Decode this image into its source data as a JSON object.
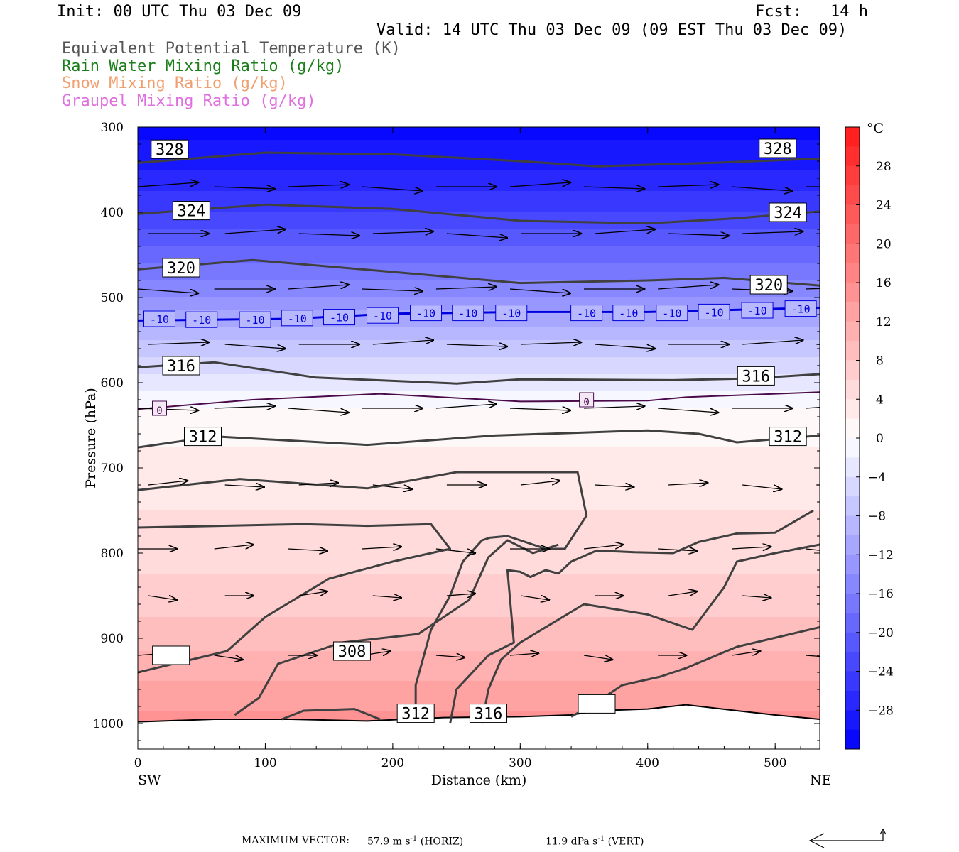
{
  "header": {
    "init": "Init: 00 UTC Thu 03 Dec 09",
    "fcst": "Fcst:   14 h",
    "valid": "Valid: 14 UTC Thu 03 Dec 09 (09 EST Thu 03 Dec 09)",
    "fields": [
      {
        "label": "Equivalent Potential Temperature (K)",
        "color": "#555555"
      },
      {
        "label": "Rain Water Mixing Ratio (g/kg)",
        "color": "#1a7f1a"
      },
      {
        "label": "Snow Mixing Ratio (g/kg)",
        "color": "#f0a070"
      },
      {
        "label": "Graupel Mixing Ratio (g/kg)",
        "color": "#e070e0"
      }
    ]
  },
  "footer": {
    "max_vector_label": "MAXIMUM VECTOR:",
    "horiz_value": "57.9 m s",
    "horiz_unit": "(HORIZ)",
    "vert_value": "11.9 dPa s",
    "vert_unit": "(VERT)",
    "exponent": "-1"
  },
  "chart_data": {
    "type": "heatmap",
    "title": "",
    "xlabel": "Distance (km)",
    "ylabel": "Pressure (hPa)",
    "xlim": [
      0,
      535
    ],
    "ylim": [
      1030,
      300
    ],
    "x_ticks": [
      0,
      100,
      200,
      300,
      400,
      500
    ],
    "y_ticks": [
      300,
      400,
      500,
      600,
      700,
      800,
      900,
      1000
    ],
    "x_end_labels": {
      "left": "SW",
      "right": "NE"
    },
    "colorbar": {
      "unit": "°C",
      "levels": [
        -32,
        -30,
        -28,
        -26,
        -24,
        -22,
        -20,
        -18,
        -16,
        -14,
        -12,
        -10,
        -8,
        -6,
        -4,
        -2,
        0,
        2,
        4,
        6,
        8,
        10,
        12,
        14,
        16,
        18,
        20,
        22,
        24,
        26,
        28,
        30,
        32
      ],
      "tick_labels": [
        28,
        24,
        20,
        16,
        12,
        8,
        4,
        0,
        -4,
        -8,
        -12,
        -16,
        -20,
        -24,
        -28
      ]
    },
    "temperature_profile": {
      "pressure": [
        300,
        350,
        400,
        450,
        500,
        550,
        600,
        630,
        700,
        800,
        900,
        1000
      ],
      "temperature": [
        -31,
        -28,
        -24,
        -19,
        -14,
        -8,
        -3,
        0,
        3,
        5,
        9,
        15
      ]
    },
    "contours": [
      {
        "name": "328",
        "color": "#404040",
        "width": 3,
        "points": [
          [
            0,
            342
          ],
          [
            100,
            330
          ],
          [
            200,
            332
          ],
          [
            300,
            340
          ],
          [
            360,
            346
          ],
          [
            450,
            342
          ],
          [
            535,
            337
          ]
        ],
        "labels": [
          [
            25,
            326
          ],
          [
            502,
            325
          ]
        ]
      },
      {
        "name": "324",
        "color": "#404040",
        "width": 3,
        "points": [
          [
            0,
            402
          ],
          [
            100,
            391
          ],
          [
            200,
            396
          ],
          [
            300,
            410
          ],
          [
            400,
            413
          ],
          [
            470,
            407
          ],
          [
            535,
            399
          ]
        ],
        "labels": [
          [
            42,
            398
          ],
          [
            510,
            400
          ]
        ]
      },
      {
        "name": "320",
        "color": "#404040",
        "width": 3,
        "points": [
          [
            0,
            467
          ],
          [
            90,
            456
          ],
          [
            200,
            470
          ],
          [
            300,
            483
          ],
          [
            400,
            480
          ],
          [
            460,
            477
          ],
          [
            535,
            486
          ]
        ],
        "labels": [
          [
            34,
            465
          ],
          [
            495,
            485
          ]
        ]
      },
      {
        "name": "-10",
        "color": "#0000dd",
        "width": 3,
        "points": [
          [
            0,
            527
          ],
          [
            120,
            525
          ],
          [
            200,
            519
          ],
          [
            300,
            517
          ],
          [
            400,
            517
          ],
          [
            535,
            512
          ]
        ],
        "labels": [
          [
            17,
            525
          ],
          [
            50,
            526
          ],
          [
            92,
            526
          ],
          [
            125,
            524
          ],
          [
            158,
            523
          ],
          [
            192,
            521
          ],
          [
            226,
            518
          ],
          [
            259,
            518
          ],
          [
            293,
            518
          ],
          [
            352,
            518
          ],
          [
            385,
            518
          ],
          [
            419,
            518
          ],
          [
            452,
            517
          ],
          [
            486,
            515
          ],
          [
            520,
            513
          ]
        ]
      },
      {
        "name": "316",
        "color": "#404040",
        "width": 3,
        "points": [
          [
            0,
            582
          ],
          [
            60,
            576
          ],
          [
            140,
            594
          ],
          [
            250,
            601
          ],
          [
            300,
            596
          ],
          [
            420,
            597
          ],
          [
            480,
            595
          ],
          [
            535,
            590
          ]
        ],
        "labels": [
          [
            34,
            580
          ],
          [
            485,
            592
          ]
        ]
      },
      {
        "name": "0",
        "color": "#4a0a4a",
        "width": 2,
        "points": [
          [
            0,
            631
          ],
          [
            90,
            620
          ],
          [
            190,
            613
          ],
          [
            300,
            622
          ],
          [
            400,
            621
          ],
          [
            430,
            617
          ],
          [
            535,
            611
          ]
        ],
        "labels": [
          [
            17,
            630
          ],
          [
            352,
            620
          ]
        ]
      },
      {
        "name": "312",
        "color": "#404040",
        "width": 3,
        "points": [
          [
            0,
            676
          ],
          [
            60,
            663
          ],
          [
            180,
            673
          ],
          [
            280,
            662
          ],
          [
            400,
            656
          ],
          [
            440,
            660
          ],
          [
            470,
            670
          ],
          [
            535,
            662
          ]
        ],
        "labels": [
          [
            51,
            663
          ],
          [
            510,
            663
          ]
        ]
      },
      {
        "name": "",
        "color": "#404040",
        "width": 3,
        "points": [
          [
            0,
            726
          ],
          [
            80,
            713
          ],
          [
            180,
            724
          ],
          [
            250,
            705
          ],
          [
            310,
            705
          ],
          [
            345,
            705
          ],
          [
            352,
            756
          ],
          [
            335,
            795
          ],
          [
            320,
            795
          ],
          [
            310,
            790
          ],
          [
            300,
            785
          ],
          [
            290,
            780
          ],
          [
            276,
            782
          ],
          [
            270,
            785
          ],
          [
            255,
            810
          ],
          [
            245,
            850
          ],
          [
            230,
            890
          ],
          [
            218,
            955
          ],
          [
            218,
            1000
          ]
        ],
        "labels": []
      },
      {
        "name": "",
        "color": "#404040",
        "width": 3,
        "points": [
          [
            0,
            770
          ],
          [
            130,
            766
          ],
          [
            180,
            768
          ],
          [
            230,
            766
          ],
          [
            245,
            795
          ],
          [
            200,
            810
          ],
          [
            150,
            830
          ],
          [
            100,
            875
          ],
          [
            70,
            915
          ],
          [
            0,
            940
          ]
        ],
        "labels": [
          [
            26,
            920
          ]
        ]
      },
      {
        "name": "",
        "color": "#404040",
        "width": 3,
        "points": [
          [
            530,
            750
          ],
          [
            500,
            776
          ],
          [
            470,
            777
          ],
          [
            440,
            787
          ],
          [
            420,
            800
          ],
          [
            390,
            799
          ],
          [
            360,
            797
          ],
          [
            340,
            810
          ],
          [
            330,
            824
          ],
          [
            320,
            820
          ],
          [
            308,
            828
          ],
          [
            300,
            822
          ],
          [
            290,
            820
          ],
          [
            295,
            905
          ],
          [
            275,
            920
          ],
          [
            250,
            960
          ],
          [
            245,
            1000
          ]
        ],
        "labels": []
      },
      {
        "name": "",
        "color": "#404040",
        "width": 3,
        "points": [
          [
            535,
            790
          ],
          [
            500,
            800
          ],
          [
            470,
            810
          ],
          [
            460,
            840
          ],
          [
            435,
            890
          ],
          [
            400,
            872
          ],
          [
            350,
            860
          ],
          [
            300,
            905
          ],
          [
            285,
            925
          ],
          [
            275,
            960
          ],
          [
            270,
            1000
          ]
        ],
        "labels": []
      },
      {
        "name": "308",
        "color": "#404040",
        "width": 3,
        "points": [
          [
            76,
            990
          ],
          [
            95,
            970
          ],
          [
            110,
            930
          ],
          [
            160,
            905
          ],
          [
            220,
            895
          ],
          [
            260,
            855
          ],
          [
            275,
            805
          ],
          [
            290,
            785
          ],
          [
            310,
            800
          ],
          [
            330,
            790
          ]
        ],
        "labels": [
          [
            168,
            915
          ]
        ]
      },
      {
        "name": "",
        "color": "#404040",
        "width": 3,
        "points": [
          [
            535,
            887
          ],
          [
            470,
            910
          ],
          [
            430,
            935
          ],
          [
            410,
            945
          ],
          [
            380,
            955
          ],
          [
            360,
            975
          ],
          [
            340,
            992
          ]
        ],
        "labels": [
          [
            360,
            977
          ]
        ]
      },
      {
        "name": "",
        "color": "#404040",
        "width": 3,
        "points": [
          [
            113,
            995
          ],
          [
            130,
            985
          ],
          [
            170,
            983
          ],
          [
            190,
            995
          ]
        ],
        "labels": []
      }
    ],
    "contour_labels_bottom": [
      {
        "text": "312",
        "x": 218,
        "p": 988
      },
      {
        "text": "316",
        "x": 275,
        "p": 988
      }
    ],
    "surface": {
      "points": [
        [
          0,
          998
        ],
        [
          60,
          995
        ],
        [
          120,
          995
        ],
        [
          180,
          997
        ],
        [
          240,
          993
        ],
        [
          300,
          992
        ],
        [
          340,
          990
        ],
        [
          360,
          985
        ],
        [
          400,
          983
        ],
        [
          430,
          978
        ],
        [
          470,
          985
        ],
        [
          500,
          990
        ],
        [
          535,
          995
        ]
      ]
    },
    "vectors": {
      "rows": [
        370,
        425,
        490,
        555,
        630,
        720,
        795,
        850,
        920
      ],
      "x": [
        0,
        60,
        118,
        176,
        234,
        292,
        350,
        408,
        466,
        524
      ],
      "scale": 1.0
    }
  }
}
